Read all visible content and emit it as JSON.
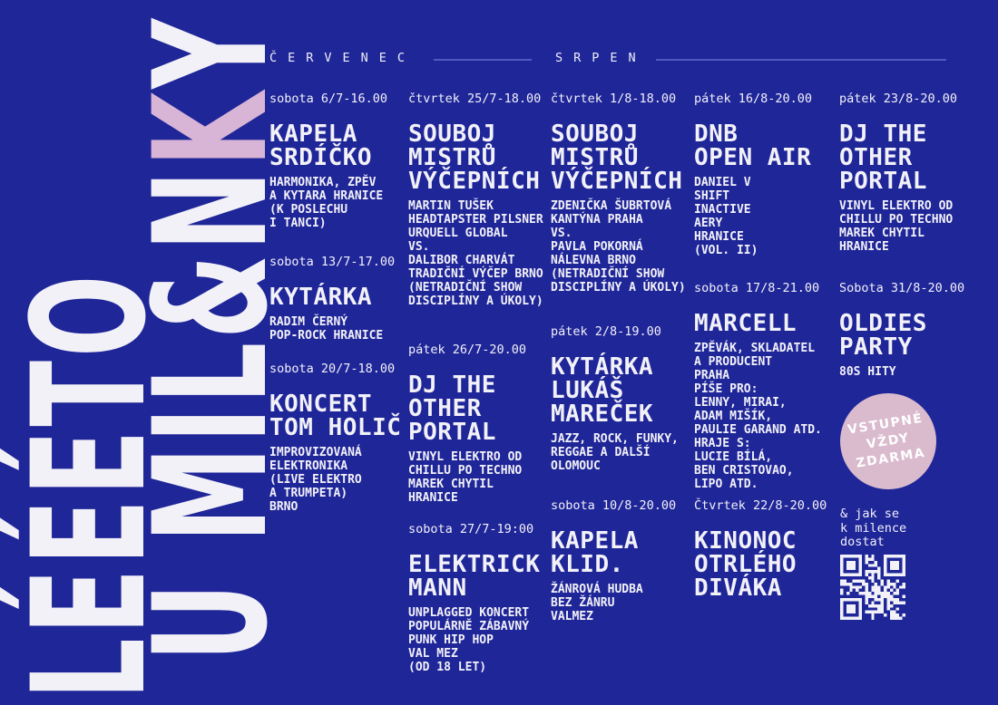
{
  "colors": {
    "background": "#1f2698",
    "text": "#f2f1f8",
    "accent_pink": "#d8b4d6",
    "badge_pink": "#dabbce",
    "divider": "#4d5ac2"
  },
  "title": {
    "line1": "LÉÉÉTO",
    "line2_before": "U MIL&N",
    "line2_accent": "K",
    "line2_after": "Y"
  },
  "months": {
    "july": "ČERVENEC",
    "august": "SRPEN"
  },
  "columns": [
    {
      "events": [
        {
          "date": "sobota 6/7-16.00",
          "title": "KAPELA\nSRDÍČKO",
          "details": "HARMONIKA, ZPĚV\nA KYTARA HRANICE\n(K POSLECHU\nI TANCI)"
        },
        {
          "date": "sobota 13/7-17.00",
          "title": "KYTÁRKA",
          "details": "RADIM ČERNÝ\nPOP-ROCK HRANICE"
        },
        {
          "date": "sobota 20/7-18.00",
          "title": "KONCERT\nTOM HOLIČ",
          "details": "IMPROVIZOVANÁ\nELEKTRONIKA\n(LIVE ELEKTRO\nA TRUMPETA)\nBRNO"
        }
      ]
    },
    {
      "events": [
        {
          "date": "čtvrtek 25/7-18.00",
          "title": "SOUBOJ\nMISTRŮ\nVÝČEPNÍCH",
          "details": "MARTIN TUŠEK\nHEADTAPSTER PILSNER\nURQUELL GLOBAL\nVS.\nDALIBOR CHARVÁT\nTRADIČNÍ VÝČEP BRNO\n(NETRADIČNÍ SHOW\nDISCIPLÍNY A ÚKOLY)"
        },
        {
          "date": "pátek 26/7-20.00",
          "title": "DJ THE\nOTHER\nPORTAL",
          "details": "VINYL ELEKTRO OD\nCHILLU PO TECHNO\nMAREK CHYTIL\nHRANICE"
        },
        {
          "date": "sobota 27/7-19:00",
          "title": "ELEKTRICK\nMANN",
          "details": "UNPLAGGED KONCERT\nPOPULÁRNĚ ZÁBAVNÝ\nPUNK HIP HOP\nVAL MEZ\n(OD 18 LET)"
        }
      ]
    },
    {
      "events": [
        {
          "date": "čtvrtek 1/8-18.00",
          "title": "SOUBOJ\nMISTRŮ\nVÝČEPNÍCH",
          "details": "ZDENIČKA ŠUBRTOVÁ\nKANTÝNA PRAHA\nVS.\nPAVLA POKORNÁ\nNÁLEVNA BRNO\n(NETRADIČNÍ SHOW\nDISCIPLÍNY A ÚKOLY)"
        },
        {
          "date": "pátek 2/8-19.00",
          "title": "KYTÁRKA\nLUKÁŠ\nMAREČEK",
          "details": "JAZZ, ROCK, FUNKY,\nREGGAE A DALŠÍ\nOLOMOUC"
        },
        {
          "date": "sobota 10/8-20.00",
          "title": "KAPELA\nKLID.",
          "details": "ŽÁNROVÁ HUDBA\nBEZ ŽÁNRU\nVALMEZ"
        }
      ]
    },
    {
      "events": [
        {
          "date": "pátek 16/8-20.00",
          "title": "DNB\nOPEN AIR",
          "details": "DANIEL V\nSHIFT\nINACTIVE\nAERY\nHRANICE\n(VOL. II)"
        },
        {
          "date": "sobota 17/8-21.00",
          "title": "MARCELL",
          "details": "ZPĚVÁK, SKLADATEL\nA PRODUCENT\nPRAHA\nPÍŠE PRO:\nLENNY, MIRAI,\nADAM MIŠÍK,\nPAULIE GARAND ATD.\nHRAJE S:\nLUCIE BÍLÁ,\nBEN CRISTOVAO,\nLIPO ATD."
        },
        {
          "date": "Čtvrtek 22/8-20.00",
          "title": "KINONOC\nOTRLÉHO\nDIVÁKA",
          "details": ""
        }
      ]
    },
    {
      "events": [
        {
          "date": "pátek 23/8-20.00",
          "title": "DJ THE\nOTHER\nPORTAL",
          "details": "VINYL ELEKTRO OD\nCHILLU PO TECHNO\nMAREK CHYTIL\nHRANICE"
        },
        {
          "date": "Sobota 31/8-20.00",
          "title": "OLDIES\nPARTY",
          "details": "80S HITY"
        }
      ]
    }
  ],
  "badge": {
    "text": "VSTUPNÉ\nVŽDY\nZDARMA"
  },
  "footer": {
    "directions": "& jak se\nk milence\ndostat"
  }
}
